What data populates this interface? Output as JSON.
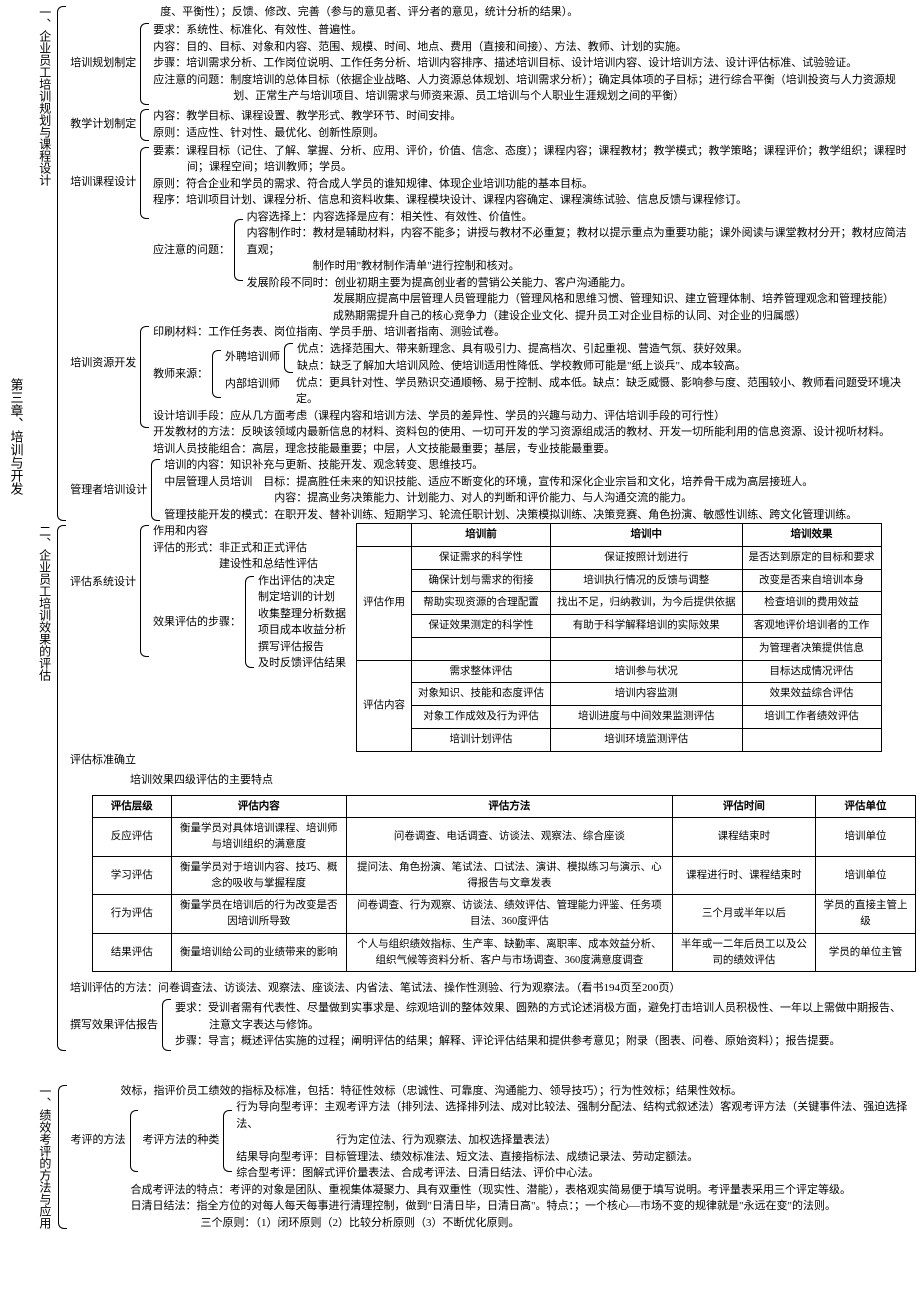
{
  "chapter": "第三章、培训与开发",
  "sec1": {
    "title": "一、企业员工培训规划与课程设计",
    "nodes": {
      "plan": {
        "label": "培训规划制定",
        "l0": "度、平衡性）；反馈、修改、完善（参与的意见者、评分者的意见，统计分析的结果）。",
        "l1": "要求：系统性、标准化、有效性、普遍性。",
        "l2": "内容：目的、目标、对象和内容、范围、规模、时间、地点、费用（直接和间接）、方法、教师、计划的实施。",
        "l3": "步骤：培训需求分析、工作岗位说明、工作任务分析、培训内容排序、描述培训目标、设计培训内容、设计培训方法、设计评估标准、试验验证。",
        "l4": "应注意的问题：制度培训的总体目标（依据企业战略、人力资源总体规划、培训需求分析）；确定具体项的子目标；进行综合平衡（培训投资与人力资源规",
        "l5": "划、正常生产与培训项目、培训需求与师资来源、员工培训与个人职业生涯规划之间的平衡）"
      },
      "teach": {
        "label": "教学计划制定",
        "l1": "内容：教学目标、课程设置、教学形式、教学环节、时间安排。",
        "l2": "原则：适应性、针对性、最优化、创新性原则。"
      },
      "course": {
        "label": "培训课程设计",
        "l1": "要素：课程目标（记住、了解、掌握、分析、应用、评价，价值、信念、态度）；课程内容；课程教材；教学模式；教学策略；课程评价；教学组织；课程时",
        "l1b": "间；课程空间；培训教师；学员。",
        "l2": "原则：符合企业和学员的需求、符合成人学员的谁知规律、体现企业培训功能的基本目标。",
        "l3": "程序：培训项目计划、课程分析、信息和资料收集、课程模块设计、课程内容确定、课程演练试验、信息反馈与课程修订。",
        "attn": "应注意的问题：",
        "a1": "内容选择上：内容选择是应有：相关性、有效性、价值性。",
        "a2": "内容制作时：教材是辅助材料，内容不能多；讲授与教材不必重复；教材以提示重点为重要功能；课外阅读与课堂教材分开；教材应简洁直观；",
        "a2b": "制作时用\"教材制作清单\"进行控制和核对。",
        "a3": "发展阶段不同时：创业初期主要为提高创业者的营销公关能力、客户沟通能力。",
        "a3b": "发展期应提高中层管理人员管理能力（管理风格和思维习惯、管理知识、建立管理体制、培养管理观念和管理技能）",
        "a3c": "成熟期需提升自己的核心竞争力（建设企业文化、提升员工对企业目标的认同、对企业的归属感）"
      },
      "res": {
        "label": "培训资源开发",
        "l1": "印刷材料：工作任务表、岗位指南、学员手册、培训者指南、测验试卷。",
        "tlabel": "教师来源：",
        "t1": "外聘培训师",
        "t1a": "优点：选择范围大、带来新理念、具有吸引力、提高档次、引起重视、营造气氛、获好效果。",
        "t1b": "缺点：缺乏了解加大培训风险、使培训适用性降低、学校教师可能是\"纸上谈兵\"、成本较高。",
        "t2": "内部培训师",
        "t2a": "优点：更具针对性、学员熟识交通顺畅、易于控制、成本低。缺点：缺乏威慑、影响参与度、范围较小、教师看问题受环境决定。",
        "l3": "设计培训手段：应从几方面考虑（课程内容和培训方法、学员的差异性、学员的兴趣与动力、评估培训手段的可行性）",
        "l4": "开发教材的方法：反映该领域内最新信息的材料、资料包的使用、一切可开发的学习资源组成活的教材、开发一切所能利用的信息资源、设计视听材料。",
        "l5": "培训人员技能组合：高层，理念技能最重要；中层，人文技能最重要；基层，专业技能最重要。"
      },
      "mgr": {
        "label": "管理者培训设计",
        "l1": "培训的内容：知识补充与更新、技能开发、观念转变、思维技巧。",
        "l2": "中层管理人员培训　目标：提高胜任未来的知识技能、适应不断变化的环境，宣传和深化企业宗旨和文化，培养骨干成为高层接班人。",
        "l2b": "内容：提高业务决策能力、计划能力、对人的判断和评价能力、与人沟通交流的能力。",
        "l3": "管理技能开发的模式：在职开发、替补训练、短期学习、轮流任职计划、决策模拟训练、决策竞赛、角色扮演、敏感性训练、跨文化管理训练。"
      }
    }
  },
  "sec2": {
    "title": "二、企业员工培训效果的评估",
    "evalSys": {
      "label": "评估系统设计",
      "b1": "作用和内容",
      "b2": "评估的形式：非正式和正式评估",
      "b2b": "建设性和总结性评估",
      "b3": "效果评估的步骤：",
      "s1": "作出评估的决定",
      "s2": "制定培训的计划",
      "s3": "收集整理分析数据",
      "s4": "项目成本收益分析",
      "s5": "撰写评估报告",
      "s6": "及时反馈评估结果"
    },
    "table1": {
      "hdr": [
        "",
        "培训前",
        "培训中",
        "培训效果"
      ],
      "rows": [
        [
          "评估作用",
          "保证需求的科学性",
          "保证按照计划进行",
          "是否达到原定的目标和要求"
        ],
        [
          "",
          "确保计划与需求的衔接",
          "培训执行情况的反馈与调整",
          "改变是否来自培训本身"
        ],
        [
          "",
          "帮助实现资源的合理配置",
          "找出不足，归纳教训，为今后提供依据",
          "检查培训的费用效益"
        ],
        [
          "",
          "保证效果测定的科学性",
          "有助于科学解释培训的实际效果",
          "客观地评价培训者的工作"
        ],
        [
          "",
          "",
          "",
          "为管理者决策提供信息"
        ],
        [
          "评估内容",
          "需求整体评估",
          "培训参与状况",
          "目标达成情况评估"
        ],
        [
          "",
          "对象知识、技能和态度评估",
          "培训内容监测",
          "效果效益综合评估"
        ],
        [
          "",
          "对象工作成效及行为评估",
          "培训进度与中间效果监测评估",
          "培训工作者绩效评估"
        ],
        [
          "",
          "培训计划评估",
          "培训环境监测评估",
          ""
        ]
      ]
    },
    "std": "评估标准确立",
    "t2title": "培训效果四级评估的主要特点",
    "table2": {
      "hdr": [
        "评估层级",
        "评估内容",
        "评估方法",
        "评估时间",
        "评估单位"
      ],
      "rows": [
        [
          "反应评估",
          "衡量学员对具体培训课程、培训师与培训组织的满意度",
          "问卷调查、电话调查、访谈法、观察法、综合座谈",
          "课程结束时",
          "培训单位"
        ],
        [
          "学习评估",
          "衡量学员对于培训内容、技巧、概念的吸收与掌握程度",
          "提问法、角色扮演、笔试法、口试法、演讲、模拟练习与演示、心得报告与文章发表",
          "课程进行时、课程结束时",
          "培训单位"
        ],
        [
          "行为评估",
          "衡量学员在培训后的行为改变是否因培训所导致",
          "问卷调查、行为观察、访谈法、绩效评估、管理能力评鉴、任务项目法、360度评估",
          "三个月或半年以后",
          "学员的直接主管上级"
        ],
        [
          "结果评估",
          "衡量培训给公司的业绩带来的影响",
          "个人与组织绩效指标、生产率、缺勤率、离职率、成本效益分析、组织气候等资料分析、客户与市场调查、360度满意度调查",
          "半年或一二年后员工以及公司的绩效评估",
          "学员的单位主管"
        ]
      ]
    },
    "method": "培训评估的方法：问卷调查法、访谈法、观察法、座谈法、内省法、笔试法、操作性测验、行为观察法。（看书194页至200页）",
    "report": {
      "label": "撰写效果评估报告",
      "l1": "要求：受训者需有代表性、尽量做到实事求是、综观培训的整体效果、圆熟的方式论述消极方面，避免打击培训人员积极性、一年以上需做中期报告、",
      "l1b": "注意文字表达与修饰。",
      "l2": "步骤：导言；概述评估实施的过程；阐明评估的结果；解释、评论评估结果和提供参考意见；附录（图表、问卷、原始资料）；报告提要。"
    }
  },
  "sec3": {
    "title": "一、绩效考评的方法与应用",
    "l0": "效标，指评价员工绩效的指标及标准，包括：特征性效标（忠诚性、可靠度、沟通能力、领导技巧）；行为性效标；结果性效标。",
    "method": {
      "label": "考评的方法",
      "sub": "考评方法的种类",
      "a": "行为导向型考评：主观考评方法（排列法、选择排列法、成对比较法、强制分配法、结构式叙述法）客观考评方法（关键事件法、强迫选择法、",
      "a2": "行为定位法、行为观察法、加权选择量表法）",
      "b": "结果导向型考评：目标管理法、绩效标准法、短文法、直接指标法、成绩记录法、劳动定额法。",
      "c": "综合型考评：图解式评价量表法、合成考评法、日清日结法、评价中心法。"
    },
    "f1": "合成考评法的特点：考评的对象是团队、重视集体凝聚力、具有双重性（现实性、潜能），表格观实简易便于填写说明。考评量表采用三个评定等级。",
    "f2": "日清日结法：指全方位的对每人每天每事进行清理控制，做到\"日清日毕，日清日高\"。特点：；一个核心—市场不变的规律就是\"永远在变\"的法则。",
    "f3": "三个原则：（1）闭环原则（2）比较分析原则（3）不断优化原则。"
  }
}
